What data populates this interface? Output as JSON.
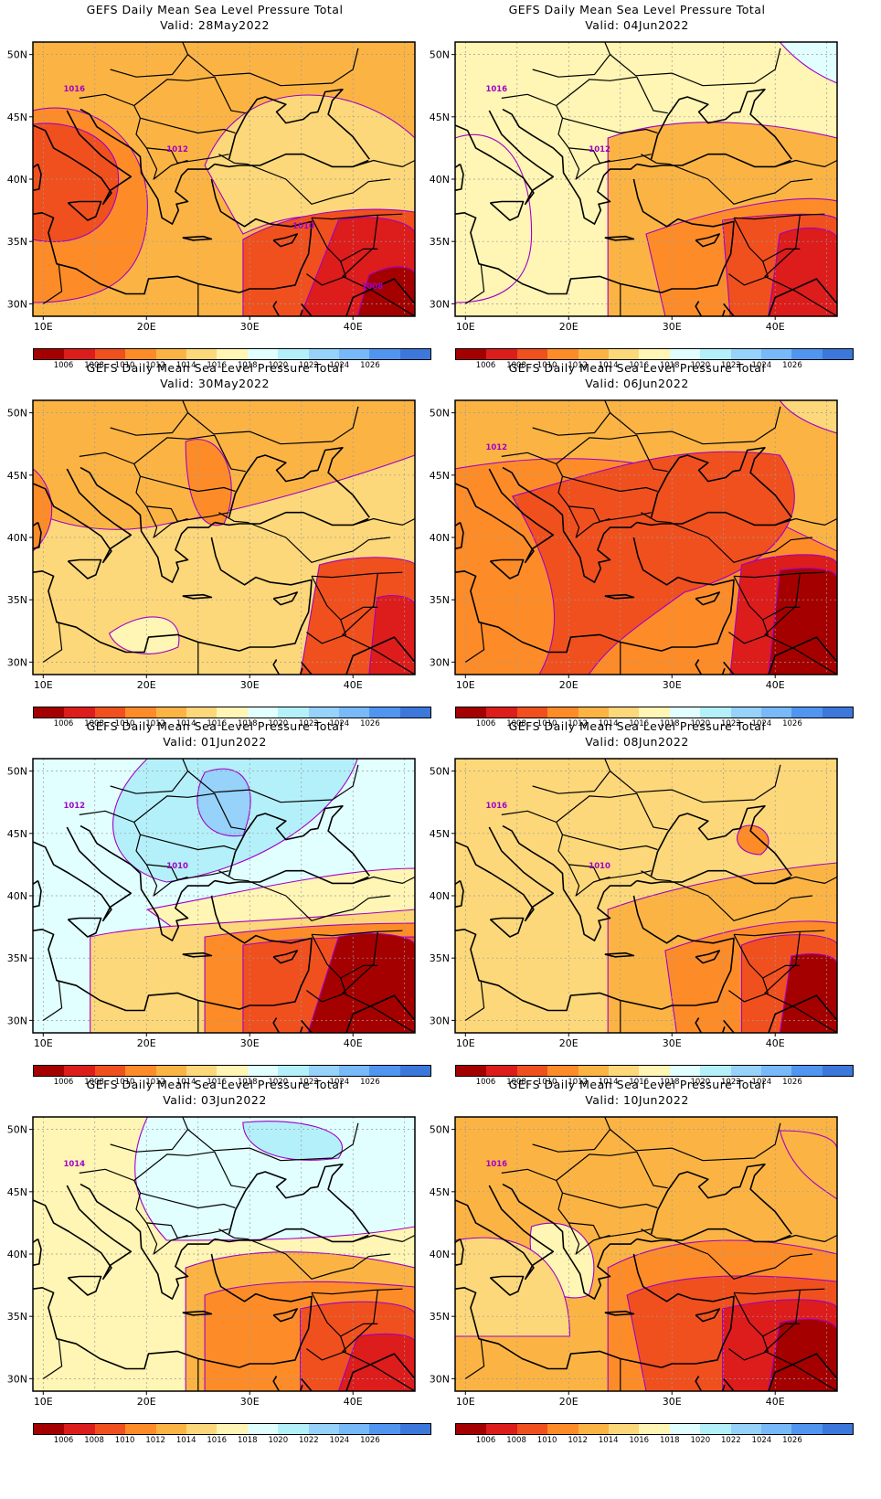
{
  "figure": {
    "title_line1": "GEFS Daily Mean Sea Level Pressure Total",
    "lon_ticks": [
      "10E",
      "20E",
      "30E",
      "40E"
    ],
    "lat_ticks": [
      "50N",
      "45N",
      "40N",
      "35N",
      "30N"
    ],
    "colorbar": {
      "colors": [
        "#a50000",
        "#dd1c1c",
        "#f0501e",
        "#fd8c28",
        "#fbb444",
        "#fdd87a",
        "#fff5b4",
        "#e1ffff",
        "#b4f0fa",
        "#96d2fa",
        "#78b9fa",
        "#5096f0",
        "#3c78dc"
      ],
      "labels": [
        "1006",
        "1008",
        "1010",
        "1012",
        "1014",
        "1016",
        "1018",
        "1020",
        "1022",
        "1024",
        "1026"
      ]
    },
    "contour_line_color": "#a000c8"
  },
  "panels": [
    {
      "valid": "Valid: 28May2022",
      "contour_labels": [
        "1016",
        "1012",
        "1010",
        "1008"
      ]
    },
    {
      "valid": "Valid: 04Jun2022",
      "contour_labels": [
        "1016",
        "1012"
      ]
    },
    {
      "valid": "Valid: 30May2022",
      "contour_labels": []
    },
    {
      "valid": "Valid: 06Jun2022",
      "contour_labels": [
        "1012"
      ]
    },
    {
      "valid": "Valid: 01Jun2022",
      "contour_labels": [
        "1012",
        "1010"
      ]
    },
    {
      "valid": "Valid: 08Jun2022",
      "contour_labels": [
        "1016",
        "1010"
      ]
    },
    {
      "valid": "Valid: 03Jun2022",
      "contour_labels": [
        "1014"
      ]
    },
    {
      "valid": "Valid: 10Jun2022",
      "contour_labels": [
        "1016"
      ]
    }
  ]
}
